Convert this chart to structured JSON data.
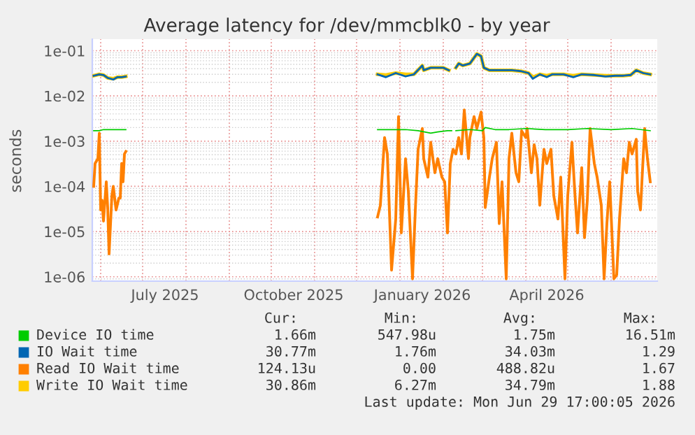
{
  "chart_data": {
    "type": "line",
    "title": "Average latency for /dev/mmcblk0 - by year",
    "ylabel": "seconds",
    "log": "y",
    "grid": true,
    "legend": "bottom",
    "xlim": [
      "2025-05-26",
      "2026-07-04"
    ],
    "ylim": [
      8e-07,
      0.18
    ],
    "xticks": [
      {
        "value": "2025-06-01",
        "label": null
      },
      {
        "value": "2025-07-01",
        "label": null
      },
      {
        "value": "2025-08-01",
        "label": null
      },
      {
        "value": "2025-09-01",
        "label": null
      },
      {
        "value": "2025-10-01",
        "label": null
      },
      {
        "value": "2025-11-01",
        "label": null
      },
      {
        "value": "2025-12-01",
        "label": null
      },
      {
        "value": "2026-01-01",
        "label": null
      },
      {
        "value": "2026-02-01",
        "label": null
      },
      {
        "value": "2026-03-01",
        "label": null
      },
      {
        "value": "2026-04-01",
        "label": null
      },
      {
        "value": "2026-05-01",
        "label": null
      },
      {
        "value": "2026-06-01",
        "label": null
      },
      {
        "value": "2025-07-17",
        "label": "July 2025"
      },
      {
        "value": "2025-10-17",
        "label": "October 2025"
      },
      {
        "value": "2026-01-17",
        "label": "January 2026"
      },
      {
        "value": "2026-04-16",
        "label": "April 2026"
      }
    ],
    "yticks": [
      {
        "value": 1e-06,
        "label": "1e-06"
      },
      {
        "value": 1e-05,
        "label": "1e-05"
      },
      {
        "value": 0.0001,
        "label": "1e-04"
      },
      {
        "value": 0.001,
        "label": "1e-03"
      },
      {
        "value": 0.01,
        "label": "1e-02"
      },
      {
        "value": 0.1,
        "label": "1e-01"
      }
    ],
    "series": [
      {
        "name": "Device IO time",
        "color": "#00cc00",
        "x": [
          "2025-05-27",
          "2025-05-31",
          "2025-06-03",
          "2025-06-08",
          "2025-06-19",
          "2025-09-01",
          "2025-12-16",
          "2025-12-26",
          "2026-01-05",
          "2026-01-14",
          "2026-01-23",
          "2026-01-28",
          "2026-02-04",
          "2026-02-07",
          "2026-02-08",
          "2026-02-10",
          "2026-02-20",
          "2026-03-01",
          "2026-03-03",
          "2026-03-10",
          "2026-03-20",
          "2026-04-01",
          "2026-04-15",
          "2026-05-01",
          "2026-05-15",
          "2026-06-01",
          "2026-06-16",
          "2026-06-29"
        ],
        "values": [
          0.0017,
          0.0017,
          0.0018,
          0.0018,
          0.0018,
          null,
          0.0018,
          0.0018,
          0.0018,
          0.0017,
          0.0015,
          0.0016,
          0.0017,
          0.0017,
          null,
          0.0017,
          0.0018,
          0.0017,
          0.002,
          0.0018,
          0.0018,
          0.0019,
          0.0018,
          0.0018,
          0.0019,
          0.0018,
          0.0019,
          0.0017
        ]
      },
      {
        "name": "IO Wait time",
        "color": "#0066b3",
        "x": [
          "2025-05-27",
          "2025-05-31",
          "2025-06-03",
          "2025-06-06",
          "2025-06-10",
          "2025-06-13",
          "2025-06-16",
          "2025-06-19",
          "2025-09-01",
          "2025-12-16",
          "2025-12-22",
          "2025-12-29",
          "2026-01-05",
          "2026-01-11",
          "2026-01-17",
          "2026-01-18",
          "2026-01-23",
          "2026-02-01",
          "2026-02-05",
          "2026-02-08",
          "2026-02-10",
          "2026-02-12",
          "2026-02-15",
          "2026-02-20",
          "2026-02-25",
          "2026-02-28",
          "2026-03-02",
          "2026-03-06",
          "2026-03-12",
          "2026-03-22",
          "2026-03-29",
          "2026-04-03",
          "2026-04-06",
          "2026-04-11",
          "2026-04-16",
          "2026-04-20",
          "2026-04-28",
          "2026-05-05",
          "2026-05-11",
          "2026-05-20",
          "2026-05-28",
          "2026-06-04",
          "2026-06-10",
          "2026-06-15",
          "2026-06-19",
          "2026-06-24",
          "2026-06-29"
        ],
        "values": [
          0.028,
          0.03,
          0.029,
          0.025,
          0.023,
          0.026,
          0.026,
          0.027,
          null,
          0.03,
          0.026,
          0.032,
          0.027,
          0.03,
          0.047,
          0.037,
          0.042,
          0.042,
          0.037,
          null,
          0.042,
          0.052,
          0.047,
          0.052,
          0.085,
          0.076,
          0.042,
          0.037,
          0.037,
          0.037,
          0.035,
          0.032,
          0.024,
          0.03,
          0.026,
          0.03,
          0.03,
          0.026,
          0.03,
          0.029,
          0.027,
          0.028,
          0.028,
          0.029,
          0.037,
          0.032,
          0.03
        ]
      },
      {
        "name": "Read IO Wait time",
        "color": "#ff8000",
        "x": [
          "2025-05-27",
          "2025-05-28",
          "2025-05-30",
          "2025-05-31",
          "2025-06-01",
          "2025-06-02",
          "2025-06-03",
          "2025-06-05",
          "2025-06-06",
          "2025-06-07",
          "2025-06-09",
          "2025-06-10",
          "2025-06-12",
          "2025-06-14",
          "2025-06-15",
          "2025-06-16",
          "2025-06-17",
          "2025-06-18",
          "2025-06-19",
          "2025-09-01",
          "2025-12-16",
          "2025-12-18",
          "2025-12-21",
          "2025-12-23",
          "2025-12-26",
          "2025-12-29",
          "2025-12-31",
          "2026-01-02",
          "2026-01-05",
          "2026-01-07",
          "2026-01-10",
          "2026-01-12",
          "2026-01-14",
          "2026-01-17",
          "2026-01-18",
          "2026-01-21",
          "2026-01-23",
          "2026-01-26",
          "2026-01-28",
          "2026-01-31",
          "2026-02-02",
          "2026-02-04",
          "2026-02-06",
          "2026-02-08",
          "2026-02-10",
          "2026-02-12",
          "2026-02-14",
          "2026-02-16",
          "2026-02-19",
          "2026-02-20",
          "2026-02-23",
          "2026-02-25",
          "2026-02-28",
          "2026-03-02",
          "2026-03-03",
          "2026-03-06",
          "2026-03-08",
          "2026-03-11",
          "2026-03-13",
          "2026-03-15",
          "2026-03-18",
          "2026-03-20",
          "2026-03-22",
          "2026-03-25",
          "2026-03-27",
          "2026-03-29",
          "2026-04-01",
          "2026-04-02",
          "2026-04-05",
          "2026-04-07",
          "2026-04-09",
          "2026-04-11",
          "2026-04-14",
          "2026-04-16",
          "2026-04-19",
          "2026-04-21",
          "2026-04-24",
          "2026-04-26",
          "2026-04-29",
          "2026-05-01",
          "2026-05-04",
          "2026-05-06",
          "2026-05-08",
          "2026-05-11",
          "2026-05-13",
          "2026-05-15",
          "2026-05-17",
          "2026-05-20",
          "2026-05-22",
          "2026-05-25",
          "2026-05-27",
          "2026-05-29",
          "2026-05-31",
          "2026-06-03",
          "2026-06-05",
          "2026-06-07",
          "2026-06-10",
          "2026-06-12",
          "2026-06-14",
          "2026-06-16",
          "2026-06-19",
          "2026-06-20",
          "2026-06-22",
          "2026-06-25",
          "2026-06-27",
          "2026-06-29"
        ],
        "values": [
          0.0001,
          0.00032,
          0.00041,
          0.0015,
          3e-05,
          4.9e-05,
          1.7e-05,
          0.000126,
          3.4e-05,
          3.2e-06,
          6.2e-05,
          0.0001,
          3e-05,
          5.5e-05,
          5.5e-05,
          0.00032,
          0.000126,
          0.00052,
          0.00059,
          null,
          2.1e-05,
          3.8e-05,
          0.0012,
          0.00052,
          1.4e-06,
          1.9e-05,
          0.0035,
          9.3e-06,
          0.00041,
          7.8e-05,
          9e-07,
          3e-05,
          0.00066,
          0.0019,
          0.00041,
          0.00016,
          0.00094,
          0.0002,
          0.00041,
          0.00016,
          0.000126,
          9.3e-06,
          0.00032,
          0.00066,
          0.00052,
          0.0012,
          0.00052,
          0.0049,
          0.00041,
          0.0012,
          0.0035,
          0.0019,
          0.0044,
          0.0012,
          3.4e-05,
          0.00016,
          0.00041,
          0.00094,
          1.5e-05,
          0.000126,
          9e-07,
          0.00041,
          0.0015,
          0.0002,
          0.000126,
          0.0017,
          0.0012,
          0.0019,
          0.0002,
          0.00083,
          0.00041,
          3.8e-05,
          0.00066,
          0.00032,
          0.00066,
          6.2e-05,
          1.9e-05,
          0.00016,
          9e-07,
          6.2e-05,
          0.00094,
          7.8e-05,
          9.3e-06,
          0.00026,
          7.3e-06,
          4.9e-05,
          0.0019,
          0.00032,
          0.00016,
          3.8e-05,
          9e-07,
          1.5e-05,
          0.000126,
          9e-07,
          1.1e-06,
          1.9e-05,
          0.00041,
          0.0002,
          0.00094,
          0.00052,
          0.0011,
          7.8e-05,
          3e-05,
          0.0019,
          0.00041,
          0.000126
        ]
      },
      {
        "name": "Write IO Wait time",
        "color": "#ffcc00",
        "x": [
          "2025-05-27",
          "2025-05-31",
          "2025-06-03",
          "2025-06-06",
          "2025-06-10",
          "2025-06-13",
          "2025-06-16",
          "2025-06-19",
          "2025-09-01",
          "2025-12-16",
          "2025-12-22",
          "2025-12-29",
          "2026-01-05",
          "2026-01-11",
          "2026-01-17",
          "2026-01-18",
          "2026-01-23",
          "2026-02-01",
          "2026-02-05",
          "2026-02-08",
          "2026-02-10",
          "2026-02-12",
          "2026-02-15",
          "2026-02-20",
          "2026-02-25",
          "2026-02-28",
          "2026-03-02",
          "2026-03-06",
          "2026-03-12",
          "2026-03-22",
          "2026-03-29",
          "2026-04-03",
          "2026-04-06",
          "2026-04-11",
          "2026-04-16",
          "2026-04-20",
          "2026-04-28",
          "2026-05-05",
          "2026-05-11",
          "2026-05-20",
          "2026-05-28",
          "2026-06-04",
          "2026-06-10",
          "2026-06-15",
          "2026-06-19",
          "2026-06-24",
          "2026-06-29"
        ],
        "values": [
          0.028,
          0.03,
          0.029,
          0.025,
          0.024,
          0.026,
          0.026,
          0.027,
          null,
          0.03,
          0.029,
          0.032,
          0.03,
          0.03,
          0.047,
          0.037,
          0.042,
          0.042,
          0.037,
          null,
          0.042,
          0.052,
          0.047,
          0.052,
          0.085,
          0.076,
          0.042,
          0.037,
          0.037,
          0.037,
          0.035,
          0.032,
          0.026,
          0.03,
          0.028,
          0.03,
          0.03,
          0.028,
          0.03,
          0.029,
          0.028,
          0.028,
          0.028,
          0.029,
          0.037,
          0.032,
          0.03
        ]
      }
    ],
    "annotations": [
      "Cur:",
      "Min:",
      "Avg:",
      "Max:",
      "1.66m",
      "547.98u",
      "1.75m",
      "16.51m",
      "30.77m",
      "1.76m",
      "34.03m",
      "1.29",
      "124.13u",
      "0.00",
      "488.82u",
      "1.67",
      "30.86m",
      "6.27m",
      "34.79m",
      "1.88",
      "Last update: Mon Jun 29 17:00:05 2026"
    ]
  }
}
